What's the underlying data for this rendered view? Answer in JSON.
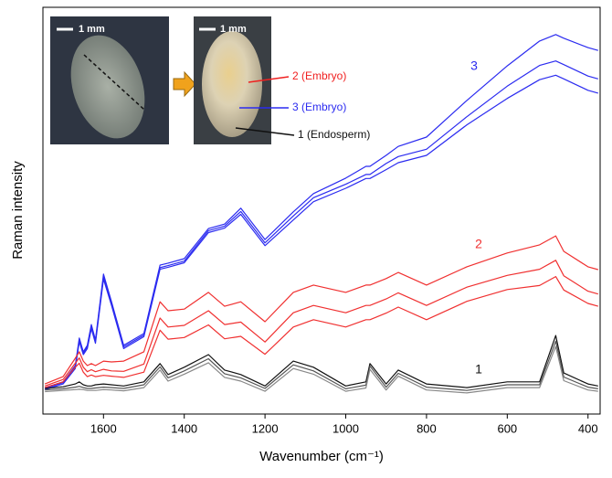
{
  "chart_data": {
    "type": "line",
    "ylabel": "Raman intensity",
    "xlabel": "Wavenumber (cm⁻¹)",
    "xlim": [
      1750,
      370
    ],
    "xticks": [
      1600,
      1400,
      1200,
      1000,
      800,
      600,
      400
    ],
    "ylim": [
      0,
      100
    ],
    "x": [
      1745,
      1700,
      1670,
      1660,
      1650,
      1640,
      1630,
      1620,
      1600,
      1580,
      1550,
      1500,
      1460,
      1440,
      1400,
      1340,
      1300,
      1260,
      1200,
      1130,
      1080,
      1000,
      950,
      940,
      900,
      870,
      800,
      700,
      600,
      520,
      480,
      460,
      400,
      375
    ],
    "series": [
      {
        "color": "#2b2bf0",
        "values": [
          6.5,
          7.9,
          11.9,
          18.7,
          15.3,
          16.9,
          22.0,
          18.2,
          34.4,
          27.6,
          16.9,
          19.8,
          36.6,
          37.1,
          38.2,
          45.6,
          46.7,
          50.6,
          42.9,
          49.7,
          54.2,
          58.0,
          60.9,
          60.9,
          63.6,
          65.8,
          68.1,
          77.1,
          85.6,
          91.7,
          93.3,
          92.4,
          90.1,
          89.4
        ]
      },
      {
        "color": "#2b2bf0",
        "values": [
          6.3,
          7.7,
          11.6,
          18.2,
          15.0,
          16.5,
          21.5,
          17.8,
          33.8,
          27.1,
          16.5,
          19.4,
          36.0,
          36.5,
          37.6,
          45.1,
          46.2,
          49.8,
          42.1,
          48.7,
          53.2,
          56.5,
          58.9,
          58.9,
          61.6,
          63.3,
          65.1,
          73.1,
          80.6,
          85.7,
          86.8,
          85.9,
          83.1,
          82.4
        ]
      },
      {
        "color": "#2b2bf0",
        "values": [
          6.0,
          7.4,
          11.2,
          17.8,
          14.6,
          16.1,
          21.0,
          17.4,
          33.2,
          26.7,
          16.1,
          19.0,
          35.6,
          36.1,
          37.2,
          44.6,
          45.7,
          49.1,
          41.4,
          47.7,
          52.2,
          55.5,
          57.9,
          57.9,
          60.1,
          61.8,
          63.6,
          71.1,
          77.6,
          82.2,
          83.3,
          82.4,
          79.6,
          78.9
        ]
      },
      {
        "color": "#f03030",
        "values": [
          7.4,
          9.2,
          13.7,
          15.3,
          13.0,
          11.9,
          12.4,
          11.9,
          13.0,
          12.8,
          13.0,
          15.3,
          27.6,
          25.4,
          25.8,
          29.9,
          26.5,
          27.6,
          22.7,
          29.9,
          31.7,
          29.9,
          31.7,
          31.7,
          33.3,
          34.8,
          31.7,
          36.2,
          39.6,
          41.6,
          43.8,
          40.0,
          36.2,
          35.5
        ]
      },
      {
        "color": "#f03030",
        "values": [
          6.9,
          8.5,
          12.5,
          13.8,
          11.5,
          10.4,
          10.9,
          10.4,
          11.0,
          10.6,
          10.5,
          12.3,
          23.6,
          21.4,
          21.8,
          25.4,
          22.0,
          22.6,
          17.7,
          24.9,
          26.7,
          24.9,
          26.7,
          26.7,
          28.3,
          29.8,
          26.7,
          31.2,
          34.1,
          35.6,
          37.8,
          34.0,
          30.2,
          29.5
        ]
      },
      {
        "color": "#f03030",
        "values": [
          6.5,
          7.9,
          11.5,
          12.5,
          10.3,
          9.2,
          9.6,
          9.2,
          9.5,
          9.3,
          9.0,
          10.3,
          20.6,
          18.4,
          18.8,
          21.9,
          18.5,
          19.1,
          14.7,
          21.4,
          23.2,
          21.4,
          23.2,
          23.2,
          24.8,
          26.3,
          23.2,
          27.7,
          30.6,
          31.6,
          33.8,
          30.5,
          27.2,
          26.5
        ]
      },
      {
        "color": "#111111",
        "values": [
          6.3,
          6.7,
          7.4,
          7.9,
          7.2,
          6.9,
          6.9,
          7.2,
          7.4,
          7.2,
          6.9,
          7.9,
          12.4,
          9.7,
          11.5,
          14.6,
          10.8,
          9.7,
          6.9,
          13.0,
          11.5,
          6.9,
          7.9,
          12.4,
          7.4,
          10.8,
          7.4,
          6.5,
          7.9,
          7.9,
          19.3,
          10.1,
          7.4,
          6.9
        ]
      },
      {
        "color": "#555555",
        "values": [
          5.9,
          6.2,
          6.6,
          6.8,
          6.5,
          6.3,
          6.3,
          6.4,
          6.6,
          6.5,
          6.3,
          7.2,
          11.6,
          8.9,
          10.6,
          13.6,
          9.9,
          8.9,
          6.3,
          12.1,
          10.6,
          6.2,
          7.1,
          11.8,
          6.6,
          10.0,
          6.6,
          5.8,
          7.2,
          7.2,
          17.9,
          9.1,
          6.6,
          6.2
        ]
      },
      {
        "color": "#888888",
        "values": [
          5.5,
          5.8,
          6.0,
          6.1,
          6.0,
          5.8,
          5.8,
          5.8,
          6.0,
          5.9,
          5.7,
          6.5,
          10.8,
          8.1,
          9.8,
          12.6,
          9.0,
          8.1,
          5.6,
          11.2,
          9.8,
          5.6,
          6.4,
          11.0,
          5.9,
          9.3,
          5.9,
          5.2,
          6.5,
          6.5,
          16.6,
          8.2,
          5.9,
          5.6
        ]
      }
    ],
    "curve_labels": [
      "3",
      "2",
      "1"
    ],
    "inset": {
      "scale_bars": [
        "1 mm",
        "1 mm"
      ],
      "labels": [
        "2 (Embryo)",
        "3 (Embryo)",
        "1 (Endosperm)"
      ]
    }
  }
}
